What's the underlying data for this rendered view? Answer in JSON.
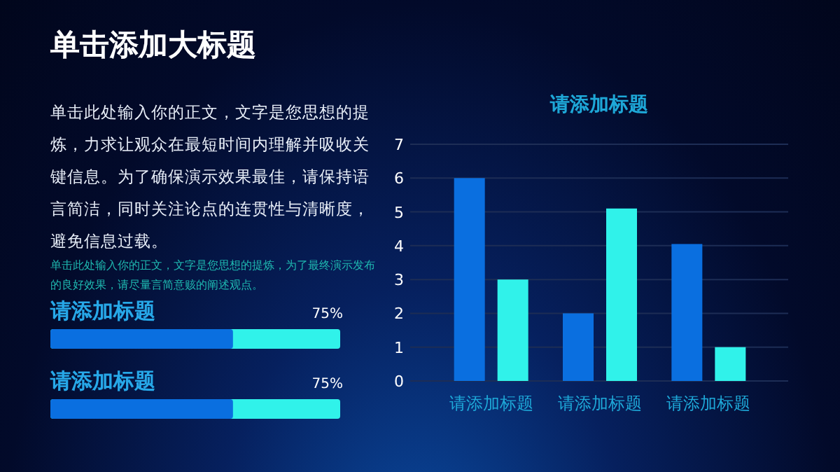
{
  "chart_data": [
    {
      "type": "other",
      "title": "单击添加大标题",
      "annotations": [
        "单击此处输入你的正文，文字是您思想的提炼，力求让观众在最短时间内理解并吸收关键信息。为了确保演示效果最佳，请保持语言简洁，同时关注论点的连贯性与清晰度，避免信息过载。",
        "单击此处输入你的正文，文字是您思想的提炼，为了最终演示发布的良好效果，请尽量言简意赅的阐述观点。"
      ]
    },
    {
      "type": "other",
      "title": "请添加标题",
      "annotations": [
        "75%"
      ]
    },
    {
      "type": "other",
      "title": "请添加标题",
      "annotations": [
        "75%"
      ]
    },
    {
      "type": "bar",
      "title": "请添加标题",
      "categories": [
        "请添加标题",
        "请添加标题",
        "请添加标题"
      ],
      "series": [
        {
          "color": "#0a6fe0",
          "values": [
            6,
            2,
            4.05
          ]
        },
        {
          "color": "#30f2ea",
          "values": [
            3,
            5.1,
            1
          ]
        }
      ],
      "ylim": [
        0,
        7
      ],
      "yticks": [
        0,
        1,
        2,
        3,
        4,
        5,
        6,
        7
      ],
      "grid": "y"
    }
  ]
}
